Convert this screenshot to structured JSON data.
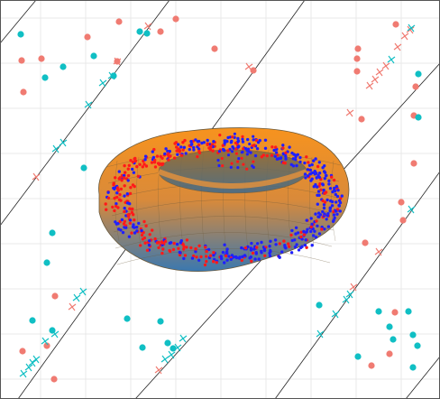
{
  "view": {
    "title": "",
    "background_color": "#ffffff",
    "grid_color": "#e8e8e8",
    "frame_color": "#555555",
    "diagonal_line_color": "#222222"
  },
  "torus": {
    "shape": "torus",
    "top_color": "#f7931e",
    "bottom_color": "#3a78b0",
    "edge_color": "#6b5a3c"
  },
  "series": [
    {
      "name": "",
      "marker": "circle",
      "color": "#f07b72"
    },
    {
      "name": "",
      "marker": "circle",
      "color": "#10bfc4"
    },
    {
      "name": "",
      "marker": "cross",
      "color": "#f07b72"
    },
    {
      "name": "",
      "marker": "cross",
      "color": "#10bfc4"
    },
    {
      "name": "",
      "marker": "dot",
      "color": "#2020ff"
    },
    {
      "name": "",
      "marker": "dot",
      "color": "#ff1a1a"
    }
  ]
}
